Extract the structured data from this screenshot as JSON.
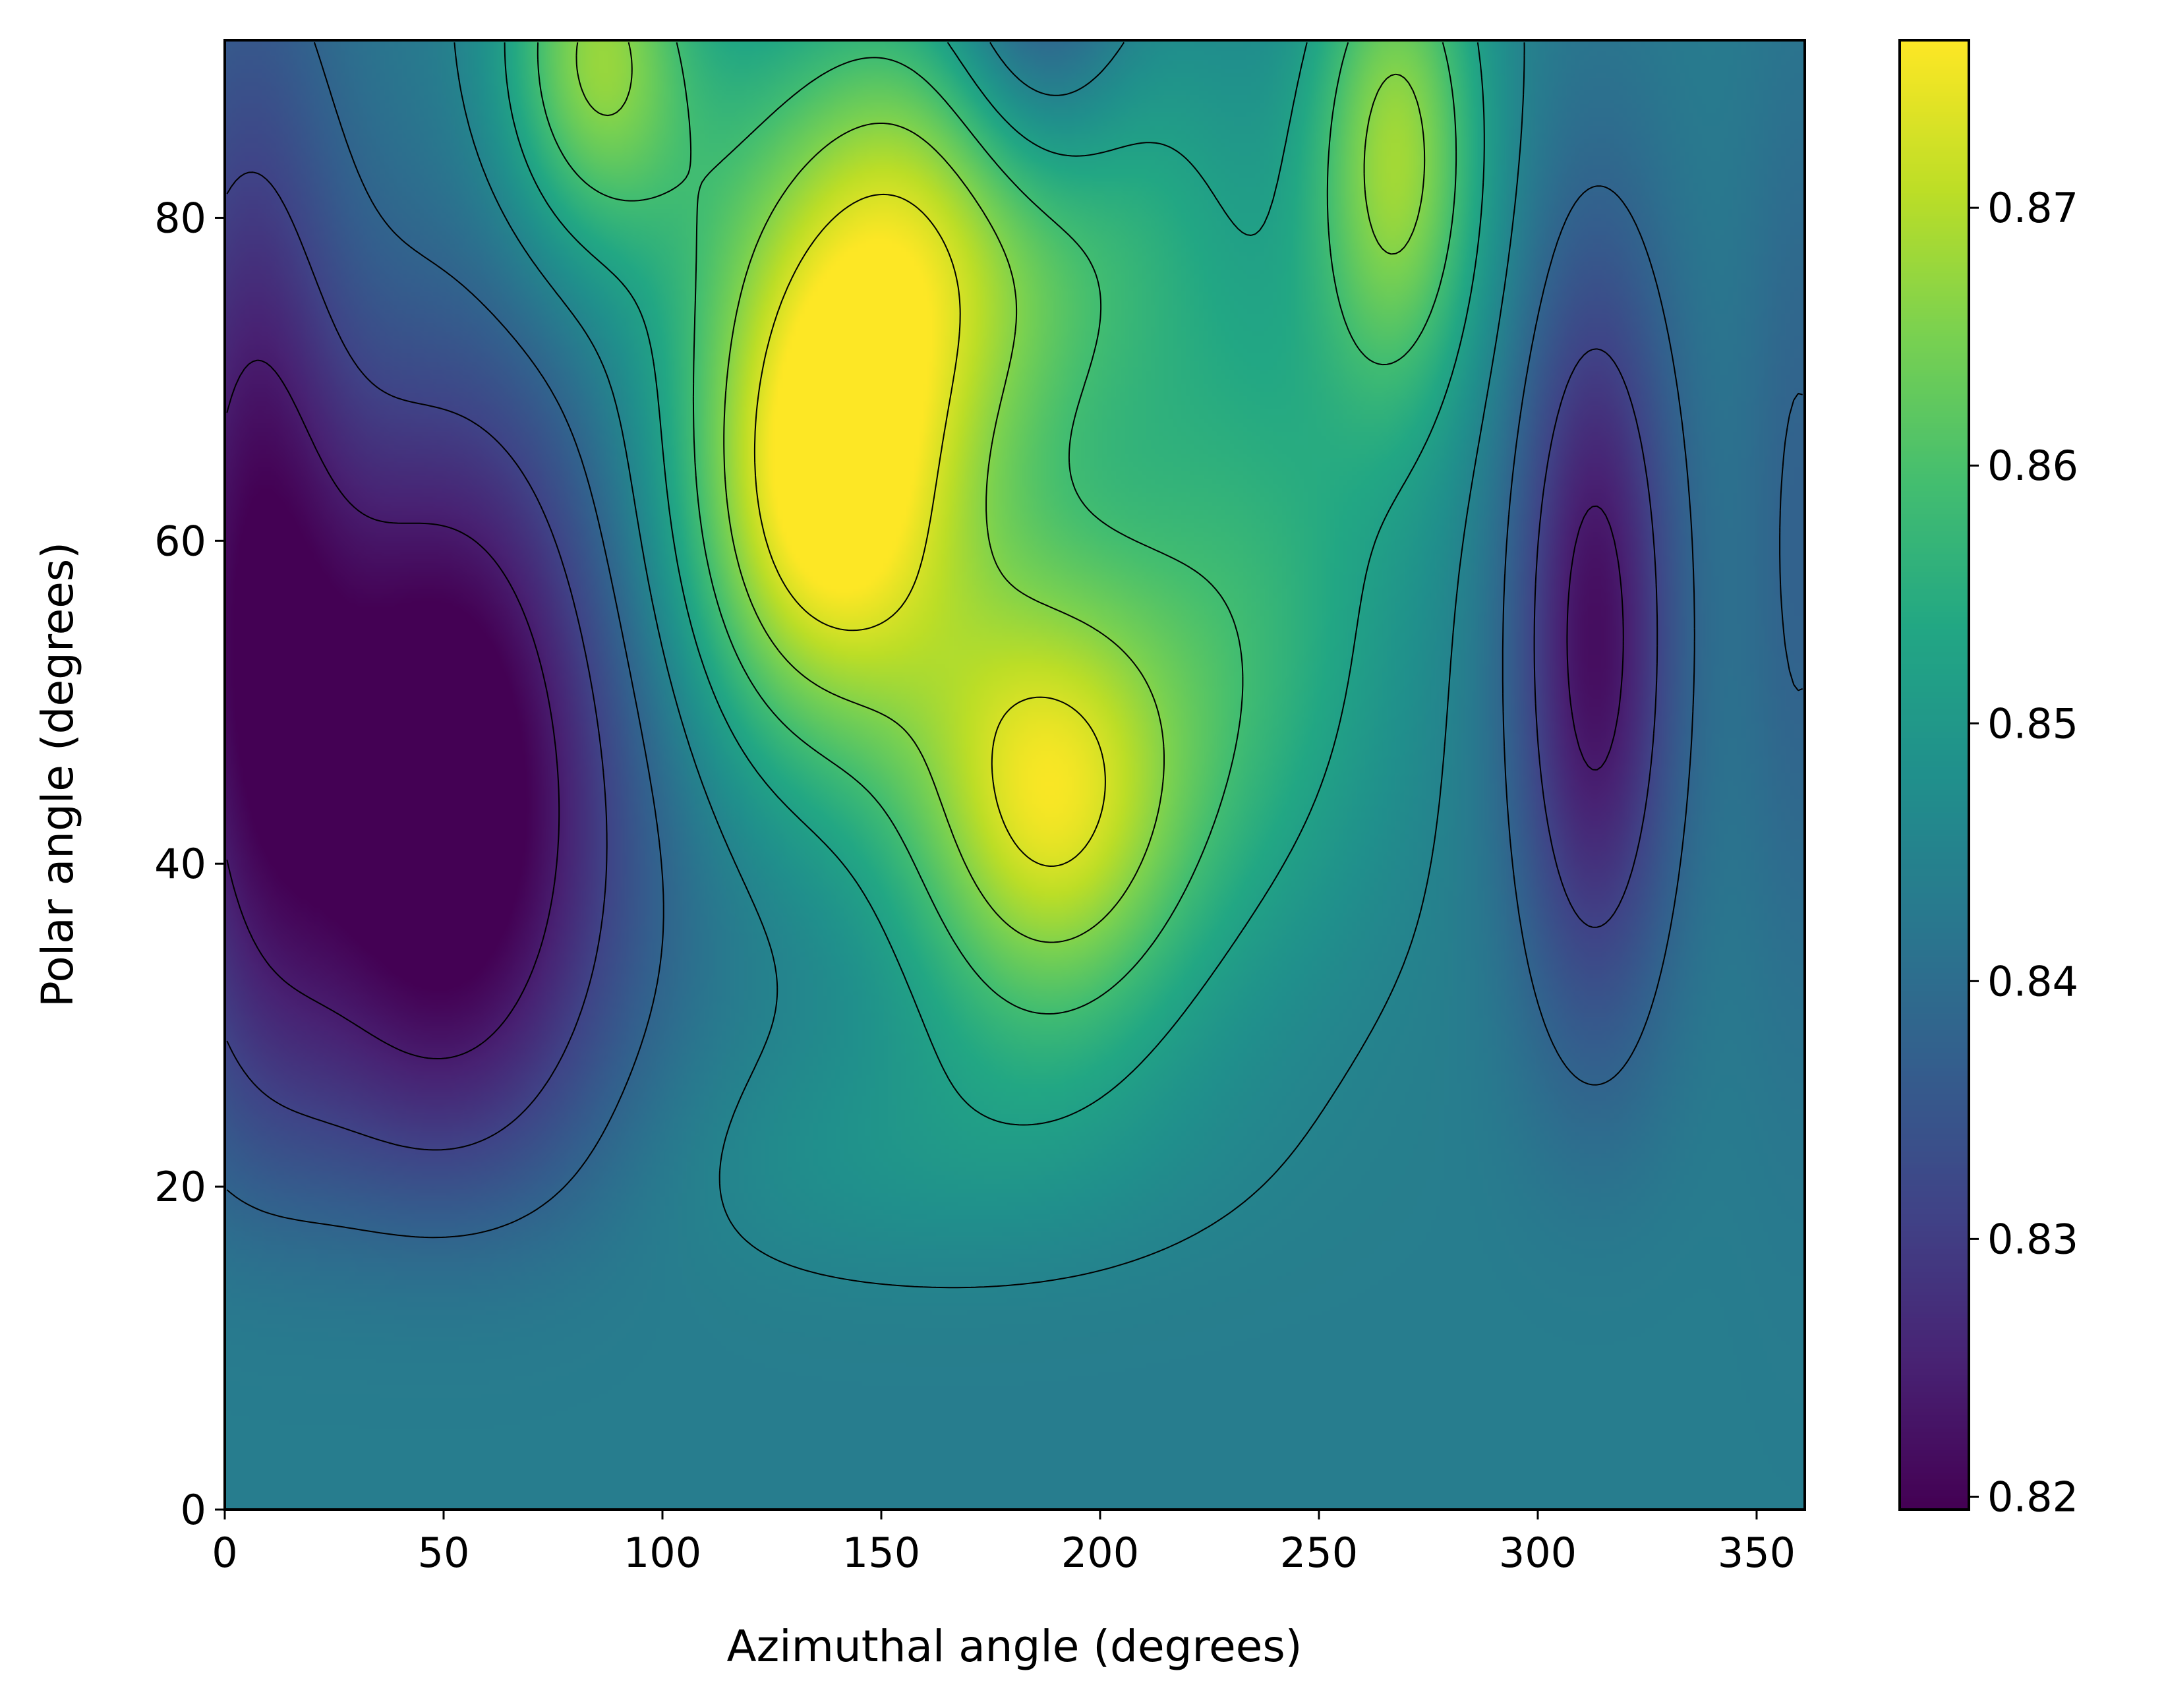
{
  "chart_data": {
    "type": "heatmap",
    "xlabel": "Azimuthal angle (degrees)",
    "ylabel": "Polar angle (degrees)",
    "xlim": [
      0,
      361
    ],
    "ylim": [
      0,
      91
    ],
    "x_ticks": [
      0,
      50,
      100,
      150,
      200,
      250,
      300,
      350
    ],
    "y_ticks": [
      0,
      20,
      40,
      60,
      80
    ],
    "colormap": "viridis",
    "colorbar": {
      "range": [
        0.8195,
        0.8765
      ],
      "ticks": [
        "0.82",
        "0.83",
        "0.84",
        "0.85",
        "0.86",
        "0.87"
      ]
    },
    "contour_lines": true,
    "contour_color": "#000000",
    "features": [
      {
        "kind": "minimum",
        "x": 50,
        "y": 44,
        "value": 0.82
      },
      {
        "kind": "minimum",
        "x": 313,
        "y": 55,
        "value": 0.82
      },
      {
        "kind": "maximum",
        "x": 135,
        "y": 64,
        "value": 0.876
      },
      {
        "kind": "maximum",
        "x": 190,
        "y": 44,
        "value": 0.876
      },
      {
        "kind": "maximum",
        "x": 85,
        "y": 89,
        "value": 0.876
      },
      {
        "kind": "maximum",
        "x": 268,
        "y": 80,
        "value": 0.876
      },
      {
        "kind": "minimum",
        "x": 183,
        "y": 90,
        "value": 0.83
      }
    ]
  }
}
